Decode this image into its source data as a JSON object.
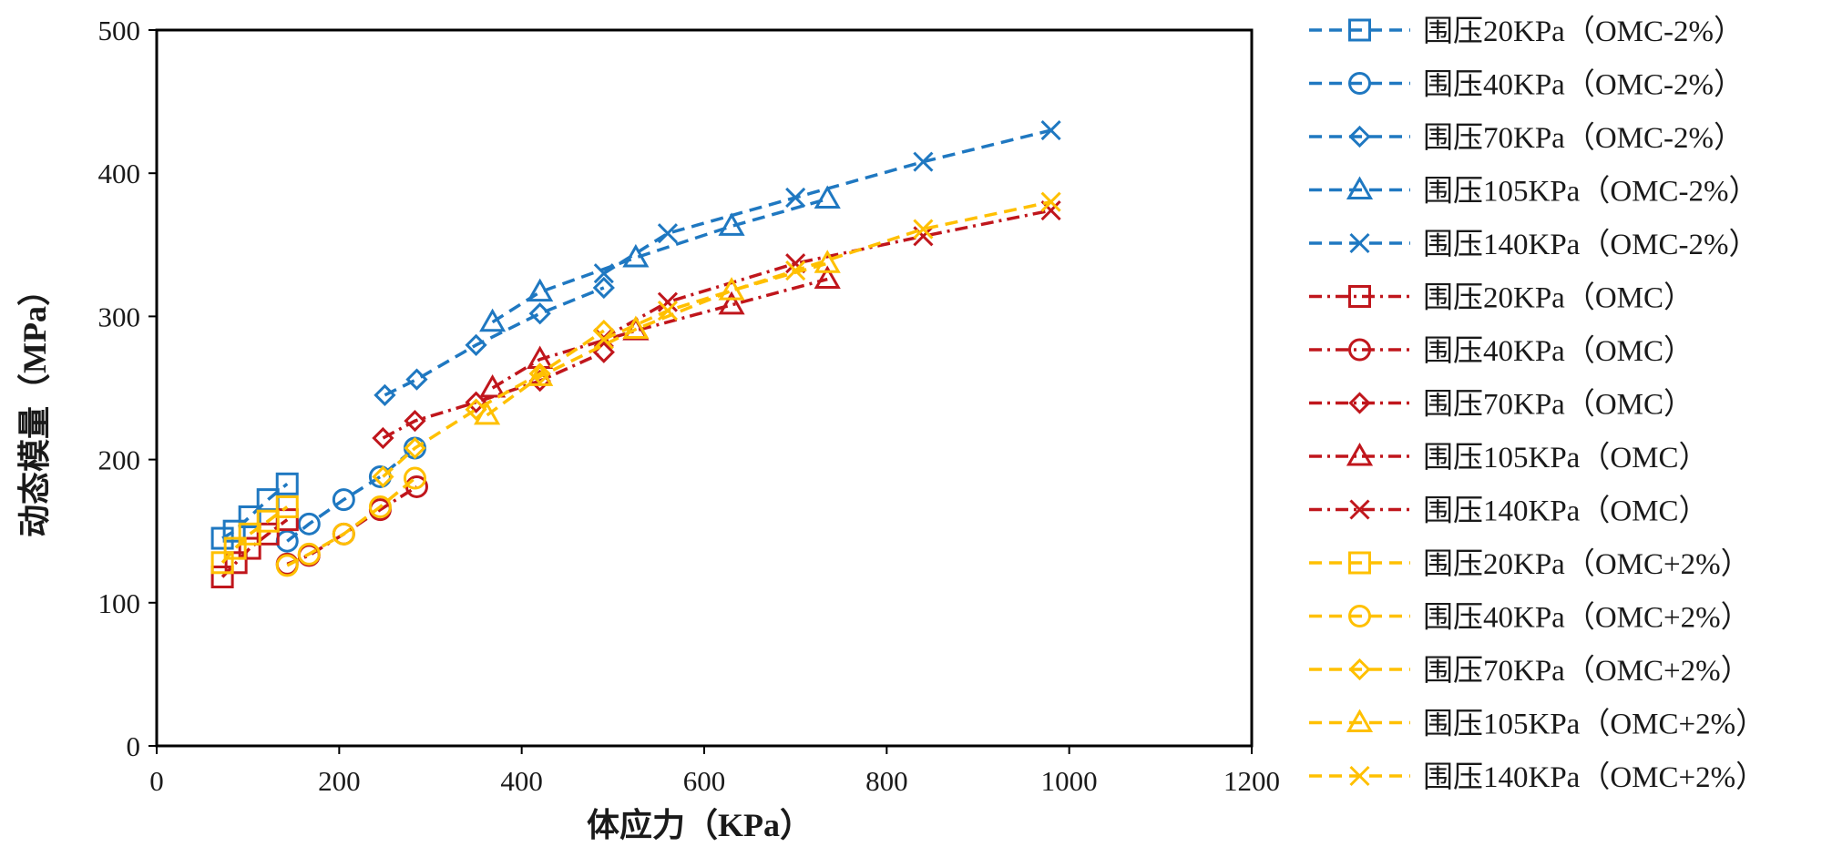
{
  "chart_data": {
    "type": "line",
    "xlabel": "体应力（KPa）",
    "ylabel": "动态模量（MPa）",
    "xlim": [
      0,
      1200
    ],
    "ylim": [
      0,
      500
    ],
    "xticks": [
      0,
      200,
      400,
      600,
      800,
      1000,
      1200
    ],
    "yticks": [
      0,
      100,
      200,
      300,
      400,
      500
    ],
    "grid": false,
    "legend_position": "right",
    "series": [
      {
        "name": "围压20KPa（OMC-2%）",
        "color": "#1f78c1",
        "marker": "square",
        "dash": "dashed",
        "points": [
          [
            72,
            145
          ],
          [
            85,
            150
          ],
          [
            102,
            160
          ],
          [
            122,
            172
          ],
          [
            143,
            183
          ]
        ]
      },
      {
        "name": "围压40KPa（OMC-2%）",
        "color": "#1f78c1",
        "marker": "circle",
        "dash": "dashed",
        "points": [
          [
            143,
            143
          ],
          [
            167,
            155
          ],
          [
            205,
            172
          ],
          [
            245,
            188
          ],
          [
            283,
            208
          ]
        ]
      },
      {
        "name": "围压70KPa（OMC-2%）",
        "color": "#1f78c1",
        "marker": "diamond",
        "dash": "dashed",
        "points": [
          [
            250,
            245
          ],
          [
            285,
            256
          ],
          [
            350,
            280
          ],
          [
            420,
            302
          ],
          [
            490,
            320
          ]
        ]
      },
      {
        "name": "围压105KPa（OMC-2%）",
        "color": "#1f78c1",
        "marker": "triangle",
        "dash": "dashed",
        "points": [
          [
            368,
            296
          ],
          [
            420,
            317
          ],
          [
            525,
            341
          ],
          [
            630,
            363
          ],
          [
            735,
            382
          ]
        ]
      },
      {
        "name": "围压140KPa（OMC-2%）",
        "color": "#1f78c1",
        "marker": "x",
        "dash": "dashed",
        "points": [
          [
            490,
            330
          ],
          [
            560,
            358
          ],
          [
            700,
            383
          ],
          [
            840,
            408
          ],
          [
            980,
            430
          ]
        ]
      },
      {
        "name": "围压20KPa（OMC）",
        "color": "#c0161c",
        "marker": "square",
        "dash": "dashdot",
        "points": [
          [
            72,
            118
          ],
          [
            87,
            128
          ],
          [
            102,
            138
          ],
          [
            122,
            148
          ],
          [
            143,
            158
          ]
        ]
      },
      {
        "name": "围压40KPa（OMC）",
        "color": "#c0161c",
        "marker": "circle",
        "dash": "dashdot",
        "points": [
          [
            143,
            127
          ],
          [
            167,
            133
          ],
          [
            205,
            148
          ],
          [
            245,
            165
          ],
          [
            285,
            181
          ]
        ]
      },
      {
        "name": "围压70KPa（OMC）",
        "color": "#c0161c",
        "marker": "diamond",
        "dash": "dashdot",
        "points": [
          [
            248,
            215
          ],
          [
            283,
            227
          ],
          [
            350,
            240
          ],
          [
            420,
            255
          ],
          [
            490,
            275
          ]
        ]
      },
      {
        "name": "围压105KPa（OMC）",
        "color": "#c0161c",
        "marker": "triangle",
        "dash": "dashdot",
        "points": [
          [
            368,
            250
          ],
          [
            420,
            270
          ],
          [
            525,
            290
          ],
          [
            630,
            308
          ],
          [
            735,
            326
          ]
        ]
      },
      {
        "name": "围压140KPa（OMC）",
        "color": "#c0161c",
        "marker": "x",
        "dash": "dashdot",
        "points": [
          [
            490,
            285
          ],
          [
            560,
            310
          ],
          [
            700,
            337
          ],
          [
            840,
            356
          ],
          [
            980,
            374
          ]
        ]
      },
      {
        "name": "围压20KPa（OMC+2%）",
        "color": "#ffc000",
        "marker": "square",
        "dash": "dashed",
        "points": [
          [
            72,
            128
          ],
          [
            86,
            138
          ],
          [
            102,
            148
          ],
          [
            122,
            157
          ],
          [
            143,
            167
          ]
        ]
      },
      {
        "name": "围压40KPa（OMC+2%）",
        "color": "#ffc000",
        "marker": "circle",
        "dash": "dashed",
        "points": [
          [
            143,
            126
          ],
          [
            167,
            134
          ],
          [
            205,
            148
          ],
          [
            245,
            167
          ],
          [
            283,
            187
          ]
        ]
      },
      {
        "name": "围压70KPa（OMC+2%）",
        "color": "#ffc000",
        "marker": "diamond",
        "dash": "dashed",
        "points": [
          [
            248,
            188
          ],
          [
            283,
            208
          ],
          [
            350,
            235
          ],
          [
            420,
            260
          ],
          [
            490,
            290
          ]
        ]
      },
      {
        "name": "围压105KPa（OMC+2%）",
        "color": "#ffc000",
        "marker": "triangle",
        "dash": "dashed",
        "points": [
          [
            362,
            231
          ],
          [
            420,
            258
          ],
          [
            525,
            291
          ],
          [
            630,
            318
          ],
          [
            735,
            337
          ]
        ]
      },
      {
        "name": "围压140KPa（OMC+2%）",
        "color": "#ffc000",
        "marker": "x",
        "dash": "dashed",
        "points": [
          [
            490,
            284
          ],
          [
            560,
            304
          ],
          [
            700,
            332
          ],
          [
            840,
            361
          ],
          [
            980,
            380
          ]
        ]
      }
    ]
  }
}
